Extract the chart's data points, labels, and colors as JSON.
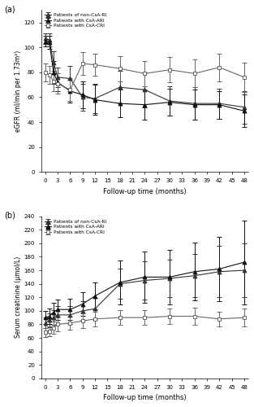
{
  "subplot_a": {
    "title": "(a)",
    "xlabel": "Follow-up time (months)",
    "ylabel": "eGFR (ml/min per 1.73m²)",
    "xlim": [
      -1,
      49
    ],
    "ylim": [
      0,
      130
    ],
    "yticks": [
      0,
      20,
      40,
      60,
      80,
      100,
      120
    ],
    "xticks": [
      0,
      3,
      6,
      9,
      12,
      15,
      18,
      21,
      24,
      27,
      30,
      33,
      36,
      39,
      42,
      45,
      48
    ],
    "series": [
      {
        "label": "Patients of non-CsA-RI",
        "marker": "^",
        "color": "#333333",
        "fillstyle": "full",
        "x": [
          0,
          1,
          2,
          3,
          6,
          9,
          12,
          18,
          24,
          30,
          36,
          42,
          48
        ],
        "y": [
          107,
          106,
          88,
          76,
          75,
          60,
          59,
          68,
          66,
          57,
          55,
          55,
          52
        ],
        "yerr": [
          4,
          5,
          9,
          8,
          10,
          11,
          12,
          13,
          14,
          12,
          13,
          12,
          13
        ]
      },
      {
        "label": "Patients with CsA-ARI",
        "marker": "^",
        "color": "#111111",
        "fillstyle": "full",
        "x": [
          0,
          1,
          2,
          3,
          6,
          9,
          12,
          18,
          24,
          30,
          36,
          42,
          48
        ],
        "y": [
          105,
          104,
          80,
          72,
          65,
          62,
          58,
          55,
          54,
          56,
          54,
          54,
          49
        ],
        "yerr": [
          4,
          5,
          9,
          7,
          9,
          11,
          12,
          11,
          12,
          11,
          12,
          11,
          13
        ]
      },
      {
        "label": "Patients with CsA-CRI",
        "marker": "s",
        "color": "#666666",
        "fillstyle": "none",
        "x": [
          0,
          1,
          2,
          3,
          6,
          9,
          12,
          18,
          24,
          30,
          36,
          42,
          48
        ],
        "y": [
          80,
          78,
          73,
          71,
          66,
          87,
          86,
          83,
          79,
          82,
          79,
          84,
          76
        ],
        "yerr": [
          7,
          7,
          8,
          8,
          9,
          9,
          9,
          10,
          10,
          10,
          11,
          11,
          12
        ]
      }
    ]
  },
  "subplot_b": {
    "title": "(b)",
    "xlabel": "Follow-up time (months)",
    "ylabel": "Serum creatinine (µmol/L)",
    "xlim": [
      -1,
      49
    ],
    "ylim": [
      0,
      240
    ],
    "yticks": [
      0,
      20,
      40,
      60,
      80,
      100,
      120,
      140,
      160,
      180,
      200,
      220,
      240
    ],
    "xticks": [
      0,
      3,
      6,
      9,
      12,
      15,
      18,
      21,
      24,
      27,
      30,
      33,
      36,
      39,
      42,
      45,
      48
    ],
    "series": [
      {
        "label": "Patients of non-CsA-RI",
        "marker": "^",
        "color": "#333333",
        "fillstyle": "full",
        "x": [
          0,
          1,
          2,
          3,
          6,
          9,
          12,
          18,
          24,
          30,
          36,
          42,
          48
        ],
        "y": [
          82,
          86,
          90,
          94,
          94,
          100,
          103,
          140,
          145,
          148,
          152,
          158,
          160
        ],
        "yerr": [
          8,
          10,
          11,
          13,
          13,
          14,
          16,
          22,
          28,
          28,
          32,
          38,
          40
        ]
      },
      {
        "label": "Patients with CsA-ARI",
        "marker": "^",
        "color": "#111111",
        "fillstyle": "full",
        "x": [
          0,
          1,
          2,
          3,
          6,
          9,
          12,
          18,
          24,
          30,
          36,
          42,
          48
        ],
        "y": [
          90,
          92,
          98,
          102,
          102,
          110,
          122,
          142,
          150,
          150,
          158,
          162,
          172
        ],
        "yerr": [
          10,
          12,
          14,
          15,
          16,
          17,
          20,
          33,
          38,
          40,
          43,
          48,
          62
        ]
      },
      {
        "label": "Patients with CsA-CRI",
        "marker": "s",
        "color": "#666666",
        "fillstyle": "none",
        "x": [
          0,
          1,
          2,
          3,
          6,
          9,
          12,
          18,
          24,
          30,
          36,
          42,
          48
        ],
        "y": [
          68,
          70,
          75,
          80,
          82,
          85,
          88,
          90,
          90,
          92,
          92,
          88,
          90
        ],
        "yerr": [
          7,
          7,
          9,
          10,
          10,
          11,
          11,
          11,
          11,
          11,
          13,
          11,
          13
        ]
      }
    ]
  }
}
